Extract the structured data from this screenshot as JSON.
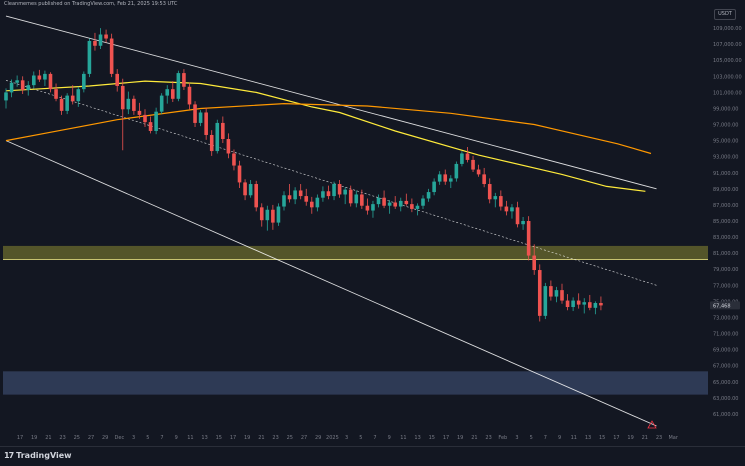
{
  "header": {
    "publisher_line": "Cleanmemes published on TradingView.com, Feb 21, 2025 19:53 UTC"
  },
  "currency_badge": "USDT",
  "footer": {
    "logo_text": "TradingView",
    "logo_mark": "17"
  },
  "colors": {
    "background": "#131722",
    "bull": "#26a69a",
    "bear": "#ef5350",
    "ma_fast": "#ffeb3b",
    "ma_slow": "#ff9800",
    "channel": "#ffffff",
    "resistance_zone": "#6b6b2e",
    "support_zone": "#3b4a6b"
  },
  "chart_data": {
    "type": "candlestick",
    "title": "",
    "ylim": [
      59000,
      111000
    ],
    "y_ticks": [
      109000,
      107000,
      105000,
      103000,
      101000,
      99000,
      97000,
      95000,
      93000,
      91000,
      89000,
      87000,
      85000,
      83000,
      81000,
      79000,
      77000,
      75000,
      73000,
      71000,
      69000,
      67000,
      65000,
      63000,
      61000
    ],
    "x_tick_labels": [
      "17",
      "19",
      "21",
      "23",
      "25",
      "27",
      "29",
      "Dec",
      "3",
      "5",
      "7",
      "9",
      "11",
      "13",
      "15",
      "17",
      "19",
      "21",
      "23",
      "25",
      "27",
      "29",
      "2025",
      "3",
      "5",
      "7",
      "9",
      "11",
      "13",
      "15",
      "17",
      "19",
      "21",
      "23",
      "Feb",
      "3",
      "5",
      "7",
      "9",
      "11",
      "13",
      "15",
      "17",
      "19",
      "21",
      "23",
      "Mar"
    ],
    "current_price": "67,468",
    "zones": [
      {
        "name": "resistance",
        "from": 80200,
        "to": 81900
      },
      {
        "name": "support",
        "from": 63400,
        "to": 66300
      }
    ],
    "candles": [
      [
        100000,
        101500,
        99000,
        101000
      ],
      [
        101000,
        102600,
        100400,
        102200
      ],
      [
        102200,
        103100,
        101700,
        102500
      ],
      [
        102500,
        103000,
        100800,
        101300
      ],
      [
        101300,
        102400,
        100600,
        101900
      ],
      [
        101900,
        103600,
        101500,
        103100
      ],
      [
        103100,
        103800,
        102300,
        102600
      ],
      [
        102600,
        103700,
        101800,
        103300
      ],
      [
        103300,
        103500,
        101000,
        101400
      ],
      [
        101400,
        102100,
        99900,
        100200
      ],
      [
        100200,
        100600,
        98200,
        98700
      ],
      [
        98700,
        100900,
        98300,
        100600
      ],
      [
        100600,
        101900,
        99500,
        99900
      ],
      [
        99900,
        101700,
        99200,
        101400
      ],
      [
        101400,
        103600,
        101000,
        103300
      ],
      [
        103300,
        107700,
        102900,
        107400
      ],
      [
        107400,
        108400,
        106200,
        106800
      ],
      [
        106800,
        109000,
        106400,
        108200
      ],
      [
        108200,
        108800,
        107200,
        107700
      ],
      [
        107700,
        108300,
        102900,
        103300
      ],
      [
        103300,
        103900,
        101100,
        101800
      ],
      [
        101800,
        102700,
        93800,
        98900
      ],
      [
        98900,
        101100,
        98300,
        100200
      ],
      [
        100200,
        100600,
        98200,
        98700
      ],
      [
        98700,
        99700,
        97700,
        98200
      ],
      [
        98200,
        98900,
        96700,
        97300
      ],
      [
        97300,
        98000,
        95900,
        96200
      ],
      [
        96200,
        99100,
        95800,
        98600
      ],
      [
        98600,
        100900,
        98300,
        100600
      ],
      [
        100600,
        101900,
        99600,
        101400
      ],
      [
        101400,
        102400,
        99800,
        100200
      ],
      [
        100200,
        103700,
        99900,
        103400
      ],
      [
        103400,
        103900,
        101300,
        101700
      ],
      [
        101700,
        102200,
        98900,
        99500
      ],
      [
        99500,
        99900,
        96700,
        97200
      ],
      [
        97200,
        98800,
        96800,
        98500
      ],
      [
        98500,
        99100,
        95100,
        95700
      ],
      [
        95700,
        96300,
        93100,
        93700
      ],
      [
        93700,
        97600,
        93400,
        97200
      ],
      [
        97200,
        98000,
        94700,
        95200
      ],
      [
        95200,
        95900,
        92800,
        93400
      ],
      [
        93400,
        93900,
        91300,
        91900
      ],
      [
        91900,
        92500,
        89100,
        89800
      ],
      [
        89800,
        90200,
        87600,
        88200
      ],
      [
        88200,
        90100,
        87900,
        89600
      ],
      [
        89600,
        90000,
        86200,
        86700
      ],
      [
        86700,
        87200,
        84300,
        85100
      ],
      [
        85100,
        86900,
        83800,
        86400
      ],
      [
        86400,
        87000,
        83900,
        84800
      ],
      [
        84800,
        87200,
        84400,
        86800
      ],
      [
        86800,
        88700,
        86300,
        88200
      ],
      [
        88200,
        89600,
        87300,
        87700
      ],
      [
        87700,
        89200,
        87100,
        88800
      ],
      [
        88800,
        89600,
        87700,
        88100
      ],
      [
        88100,
        89000,
        86900,
        87400
      ],
      [
        87400,
        88000,
        85900,
        86700
      ],
      [
        86700,
        88300,
        86200,
        87900
      ],
      [
        87900,
        89300,
        87400,
        88700
      ],
      [
        88700,
        89400,
        87700,
        88100
      ],
      [
        88100,
        89900,
        87600,
        89600
      ],
      [
        89600,
        90100,
        87900,
        88300
      ],
      [
        88300,
        89200,
        87100,
        88900
      ],
      [
        88900,
        89400,
        86800,
        87200
      ],
      [
        87200,
        88800,
        86700,
        88300
      ],
      [
        88300,
        88900,
        86500,
        86900
      ],
      [
        86900,
        87800,
        85800,
        86300
      ],
      [
        86300,
        87500,
        85400,
        87100
      ],
      [
        87100,
        88300,
        86700,
        87900
      ],
      [
        87900,
        88800,
        86600,
        86900
      ],
      [
        86900,
        87600,
        85900,
        87300
      ],
      [
        87300,
        88100,
        86500,
        86800
      ],
      [
        86800,
        87900,
        86200,
        87500
      ],
      [
        87500,
        88400,
        86900,
        87100
      ],
      [
        87100,
        87800,
        86100,
        86500
      ],
      [
        86500,
        87200,
        85700,
        86900
      ],
      [
        86900,
        88200,
        86500,
        87800
      ],
      [
        87800,
        89000,
        87400,
        88600
      ],
      [
        88600,
        90300,
        88200,
        89900
      ],
      [
        89900,
        91200,
        89500,
        90800
      ],
      [
        90800,
        91400,
        89500,
        89900
      ],
      [
        89900,
        90700,
        89100,
        90300
      ],
      [
        90300,
        92400,
        89900,
        92100
      ],
      [
        92100,
        93700,
        91800,
        93400
      ],
      [
        93400,
        94200,
        92300,
        92600
      ],
      [
        92600,
        93100,
        91100,
        91400
      ],
      [
        91400,
        92000,
        90500,
        90800
      ],
      [
        90800,
        91600,
        89200,
        89600
      ],
      [
        89600,
        90300,
        87200,
        87700
      ],
      [
        87700,
        88500,
        86700,
        88100
      ],
      [
        88100,
        88800,
        86300,
        86800
      ],
      [
        86800,
        87500,
        85700,
        86200
      ],
      [
        86200,
        87100,
        85300,
        86700
      ],
      [
        86700,
        87400,
        84200,
        84600
      ],
      [
        84600,
        85500,
        83900,
        85000
      ],
      [
        85000,
        85600,
        80100,
        80700
      ],
      [
        80700,
        82100,
        78300,
        78900
      ],
      [
        78900,
        79600,
        72500,
        73200
      ],
      [
        73200,
        77300,
        72800,
        76900
      ],
      [
        76900,
        77600,
        75100,
        75600
      ],
      [
        75600,
        76800,
        74900,
        76400
      ],
      [
        76400,
        77200,
        74700,
        75100
      ],
      [
        75100,
        75900,
        73900,
        74300
      ],
      [
        74300,
        75500,
        73800,
        75100
      ],
      [
        75100,
        76000,
        74100,
        74600
      ],
      [
        74600,
        75400,
        73500,
        74900
      ],
      [
        74900,
        75800,
        73900,
        74200
      ],
      [
        74200,
        75000,
        73400,
        74800
      ],
      [
        74800,
        75600,
        73900,
        74500
      ]
    ],
    "series": [
      {
        "name": "",
        "color": "#ffeb3b",
        "points": [
          [
            0,
            101200
          ],
          [
            15,
            101800
          ],
          [
            25,
            102400
          ],
          [
            35,
            102100
          ],
          [
            45,
            101000
          ],
          [
            55,
            99200
          ],
          [
            60,
            98500
          ],
          [
            70,
            96200
          ],
          [
            85,
            93200
          ],
          [
            100,
            90800
          ],
          [
            108,
            89300
          ],
          [
            115,
            88700
          ]
        ]
      },
      {
        "name": "",
        "color": "#ff9800",
        "points": [
          [
            0,
            95000
          ],
          [
            10,
            96300
          ],
          [
            20,
            97600
          ],
          [
            35,
            99000
          ],
          [
            50,
            99600
          ],
          [
            65,
            99300
          ],
          [
            80,
            98400
          ],
          [
            95,
            97000
          ],
          [
            110,
            94600
          ],
          [
            116,
            93400
          ]
        ]
      }
    ],
    "channels": [
      {
        "name": "upper",
        "points": [
          [
            0,
            110500
          ],
          [
            117,
            89000
          ]
        ]
      },
      {
        "name": "mid",
        "points": [
          [
            0,
            102500
          ],
          [
            117,
            77000
          ]
        ]
      },
      {
        "name": "lower",
        "points": [
          [
            0,
            95000
          ],
          [
            117,
            59500
          ]
        ]
      }
    ]
  }
}
